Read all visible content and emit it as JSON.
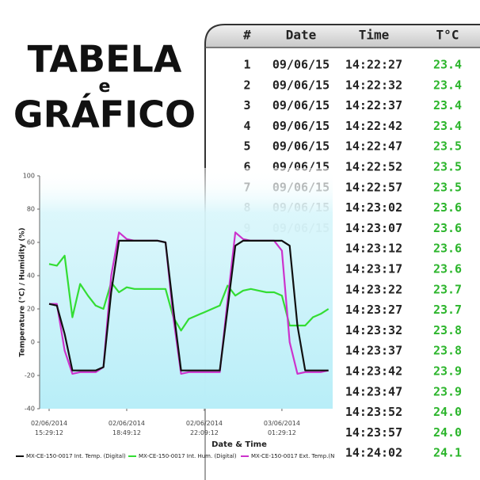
{
  "header": {
    "line1": "TABELA",
    "line2": "e",
    "line3": "GRÁFICO"
  },
  "table": {
    "columns": [
      "#",
      "Date",
      "Time",
      "T°C"
    ],
    "rows": [
      [
        "1",
        "09/06/15",
        "14:22:27",
        "23.4"
      ],
      [
        "2",
        "09/06/15",
        "14:22:32",
        "23.4"
      ],
      [
        "3",
        "09/06/15",
        "14:22:37",
        "23.4"
      ],
      [
        "4",
        "09/06/15",
        "14:22:42",
        "23.4"
      ],
      [
        "5",
        "09/06/15",
        "14:22:47",
        "23.5"
      ],
      [
        "6",
        "09/06/15",
        "14:22:52",
        "23.5"
      ],
      [
        "7",
        "09/06/15",
        "14:22:57",
        "23.5"
      ],
      [
        "8",
        "09/06/15",
        "14:23:02",
        "23.6"
      ],
      [
        "9",
        "09/06/15",
        "14:23:07",
        "23.6"
      ],
      [
        null,
        null,
        "14:23:12",
        "23.6"
      ],
      [
        null,
        null,
        "14:23:17",
        "23.6"
      ],
      [
        null,
        null,
        "14:23:22",
        "23.7"
      ],
      [
        null,
        null,
        "14:23:27",
        "23.7"
      ],
      [
        null,
        null,
        "14:23:32",
        "23.8"
      ],
      [
        null,
        null,
        "14:23:37",
        "23.8"
      ],
      [
        null,
        null,
        "14:23:42",
        "23.9"
      ],
      [
        null,
        null,
        "14:23:47",
        "23.9"
      ],
      [
        null,
        null,
        "14:23:52",
        "24.0"
      ],
      [
        null,
        null,
        "14:23:57",
        "24.0"
      ],
      [
        null,
        null,
        "14:24:02",
        "24.1"
      ]
    ]
  },
  "chart_data": {
    "type": "line",
    "xlabel": "Date & Time",
    "ylabel": "Temperature (°C) / Humidity (%)",
    "x": [
      "02/06/2014 15:29:12",
      "02/06/2014 15:49:12",
      "02/06/2014 16:09:12",
      "02/06/2014 16:29:12",
      "02/06/2014 16:49:12",
      "02/06/2014 17:09:12",
      "02/06/2014 17:29:12",
      "02/06/2014 17:49:12",
      "02/06/2014 18:09:12",
      "02/06/2014 18:29:12",
      "02/06/2014 18:49:12",
      "02/06/2014 19:09:12",
      "02/06/2014 19:29:12",
      "02/06/2014 19:49:12",
      "02/06/2014 20:09:12",
      "02/06/2014 20:29:12",
      "02/06/2014 20:49:12",
      "02/06/2014 21:09:12",
      "02/06/2014 21:29:12",
      "02/06/2014 21:49:12",
      "02/06/2014 22:09:12",
      "02/06/2014 22:29:12",
      "02/06/2014 22:49:12",
      "02/06/2014 23:09:12",
      "02/06/2014 23:29:12",
      "02/06/2014 23:49:12",
      "03/06/2014 00:09:12",
      "03/06/2014 00:29:12",
      "03/06/2014 00:49:12",
      "03/06/2014 01:09:12",
      "03/06/2014 01:29:12",
      "03/06/2014 01:49:12",
      "03/06/2014 02:09:12",
      "03/06/2014 02:29:12",
      "03/06/2014 02:49:12",
      "03/06/2014 03:09:12",
      "03/06/2014 03:29:12"
    ],
    "series": [
      {
        "name": "MX-CE-150-0017 Int. Temp. (Digital)",
        "color": "#111111",
        "values": [
          23,
          22,
          5,
          -17,
          -17,
          -17,
          -17,
          -15,
          30,
          61,
          61,
          61,
          61,
          61,
          61,
          60,
          20,
          -17,
          -17,
          -17,
          -17,
          -17,
          -17,
          20,
          58,
          61,
          61,
          61,
          61,
          61,
          61,
          58,
          10,
          -17,
          -17,
          -17,
          -17
        ]
      },
      {
        "name": "MX-CE-150-0017 Int. Hum. (Digital)",
        "color": "#33dd33",
        "values": [
          47,
          46,
          52,
          15,
          35,
          28,
          22,
          20,
          36,
          30,
          33,
          32,
          32,
          32,
          32,
          32,
          15,
          7,
          14,
          16,
          18,
          20,
          22,
          34,
          28,
          31,
          32,
          31,
          30,
          30,
          28,
          10,
          10,
          10,
          15,
          17,
          20
        ]
      },
      {
        "name": "MX-CE-150-0017 Ext. Temp.(N",
        "color": "#cc33cc",
        "values": [
          23,
          23,
          -5,
          -19,
          -18,
          -18,
          -18,
          -15,
          40,
          66,
          62,
          61,
          61,
          61,
          61,
          60,
          15,
          -19,
          -18,
          -18,
          -18,
          -18,
          -18,
          25,
          66,
          62,
          61,
          61,
          61,
          61,
          55,
          0,
          -19,
          -18,
          -18,
          -18,
          -17
        ]
      }
    ],
    "xlim": [
      "02/06/2014 15:04:42",
      "03/06/2014 03:40:00"
    ],
    "xticks": [
      "02/06/2014 15:29:12",
      "02/06/2014 18:49:12",
      "02/06/2014 22:09:12",
      "03/06/2014 01:29:12"
    ],
    "ylim": [
      -40,
      100
    ],
    "yticks": [
      -40,
      -20,
      0,
      20,
      40,
      60,
      80,
      100
    ]
  }
}
